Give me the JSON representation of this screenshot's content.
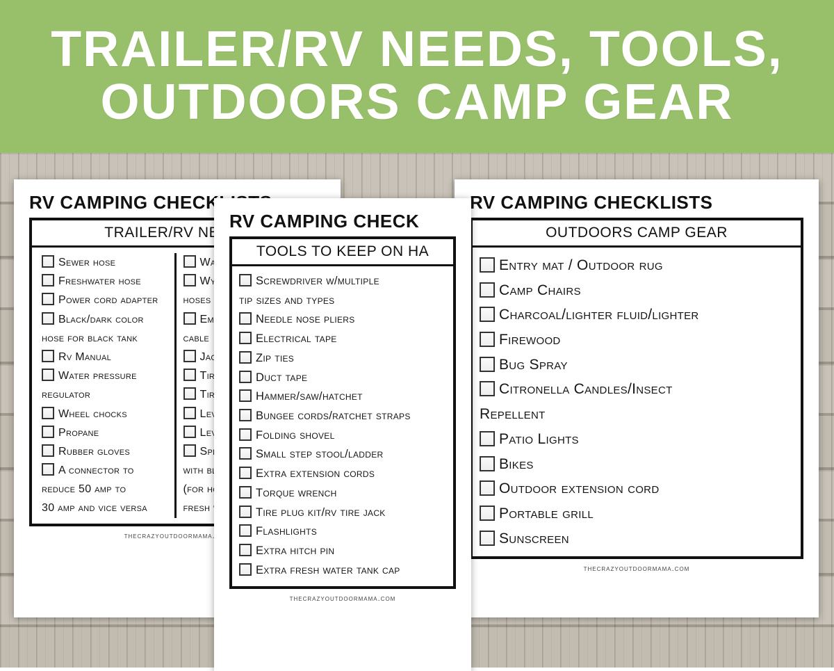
{
  "colors": {
    "banner_bg": "#98c06a",
    "banner_text": "#ffffff",
    "sheet_bg": "#ffffff",
    "border": "#111111",
    "text": "#151515",
    "checkbox_border": "#333333"
  },
  "banner": {
    "title": "TRAILER/RV NEEDS, TOOLS, OUTDOORS CAMP GEAR"
  },
  "footer_text": "thecrazyoutdoormama.com",
  "sheets": {
    "left": {
      "title": "RV CAMPING CHECKLISTS",
      "subtitle": "TRAILER/RV NEEDS",
      "col1": [
        {
          "check": true,
          "text": "Sewer hose"
        },
        {
          "check": true,
          "text": "Freshwater hose"
        },
        {
          "check": true,
          "text": "Power cord adapter"
        },
        {
          "check": true,
          "text": "Black/dark color"
        },
        {
          "check": false,
          "text": "hose for black tank"
        },
        {
          "check": true,
          "text": "Rv Manual"
        },
        {
          "check": true,
          "text": "Water pressure"
        },
        {
          "check": false,
          "text": "regulator"
        },
        {
          "check": true,
          "text": "Wheel chocks"
        },
        {
          "check": true,
          "text": "Propane"
        },
        {
          "check": true,
          "text": "Rubber gloves"
        },
        {
          "check": true,
          "text": "A connector to"
        },
        {
          "check": false,
          "text": "reduce 50 amp to"
        },
        {
          "check": false,
          "text": "30 amp and vice versa"
        }
      ],
      "col2": [
        {
          "check": true,
          "text": "Water f"
        },
        {
          "check": true,
          "text": "Wye fitt"
        },
        {
          "check": false,
          "text": "hoses"
        },
        {
          "check": true,
          "text": "Emergen"
        },
        {
          "check": false,
          "text": "cable"
        },
        {
          "check": true,
          "text": "Jack and"
        },
        {
          "check": true,
          "text": "Tire iro"
        },
        {
          "check": true,
          "text": "Tire Gau"
        },
        {
          "check": true,
          "text": "Level"
        },
        {
          "check": true,
          "text": "Leveling"
        },
        {
          "check": true,
          "text": "Spray bo"
        },
        {
          "check": false,
          "text": "with bleach"
        },
        {
          "check": false,
          "text": "(for hookin"
        },
        {
          "check": false,
          "text": "fresh water"
        }
      ]
    },
    "mid": {
      "title": "RV CAMPING CHECK",
      "subtitle": "TOOLS TO KEEP ON HA",
      "items": [
        {
          "check": true,
          "text": "Screwdriver w/multiple"
        },
        {
          "check": false,
          "text": "tip sizes and types"
        },
        {
          "check": true,
          "text": "Needle nose pliers"
        },
        {
          "check": true,
          "text": "Electrical tape"
        },
        {
          "check": true,
          "text": "Zip ties"
        },
        {
          "check": true,
          "text": "Duct tape"
        },
        {
          "check": true,
          "text": "Hammer/saw/hatchet"
        },
        {
          "check": true,
          "text": "Bungee cords/ratchet straps"
        },
        {
          "check": true,
          "text": "Folding shovel"
        },
        {
          "check": true,
          "text": "Small step stool/ladder"
        },
        {
          "check": true,
          "text": "Extra extension cords"
        },
        {
          "check": true,
          "text": "Torque wrench"
        },
        {
          "check": true,
          "text": "Tire plug kit/rv tire jack"
        },
        {
          "check": true,
          "text": "Flashlights"
        },
        {
          "check": true,
          "text": "Extra hitch pin"
        },
        {
          "check": true,
          "text": "Extra fresh water tank cap"
        }
      ]
    },
    "right": {
      "title": "RV CAMPING CHECKLISTS",
      "subtitle": "OUTDOORS CAMP GEAR",
      "items": [
        {
          "check": true,
          "text": "Entry mat / Outdoor rug"
        },
        {
          "check": true,
          "text": "Camp Chairs"
        },
        {
          "check": true,
          "text": "Charcoal/lighter fluid/lighter"
        },
        {
          "check": true,
          "text": "Firewood"
        },
        {
          "check": true,
          "text": "Bug Spray"
        },
        {
          "check": true,
          "text": "Citronella Candles/Insect"
        },
        {
          "check": false,
          "text": "Repellent"
        },
        {
          "check": true,
          "text": "Patio Lights"
        },
        {
          "check": true,
          "text": "Bikes"
        },
        {
          "check": true,
          "text": "Outdoor extension cord"
        },
        {
          "check": true,
          "text": "Portable grill"
        },
        {
          "check": true,
          "text": "Sunscreen"
        }
      ]
    }
  }
}
